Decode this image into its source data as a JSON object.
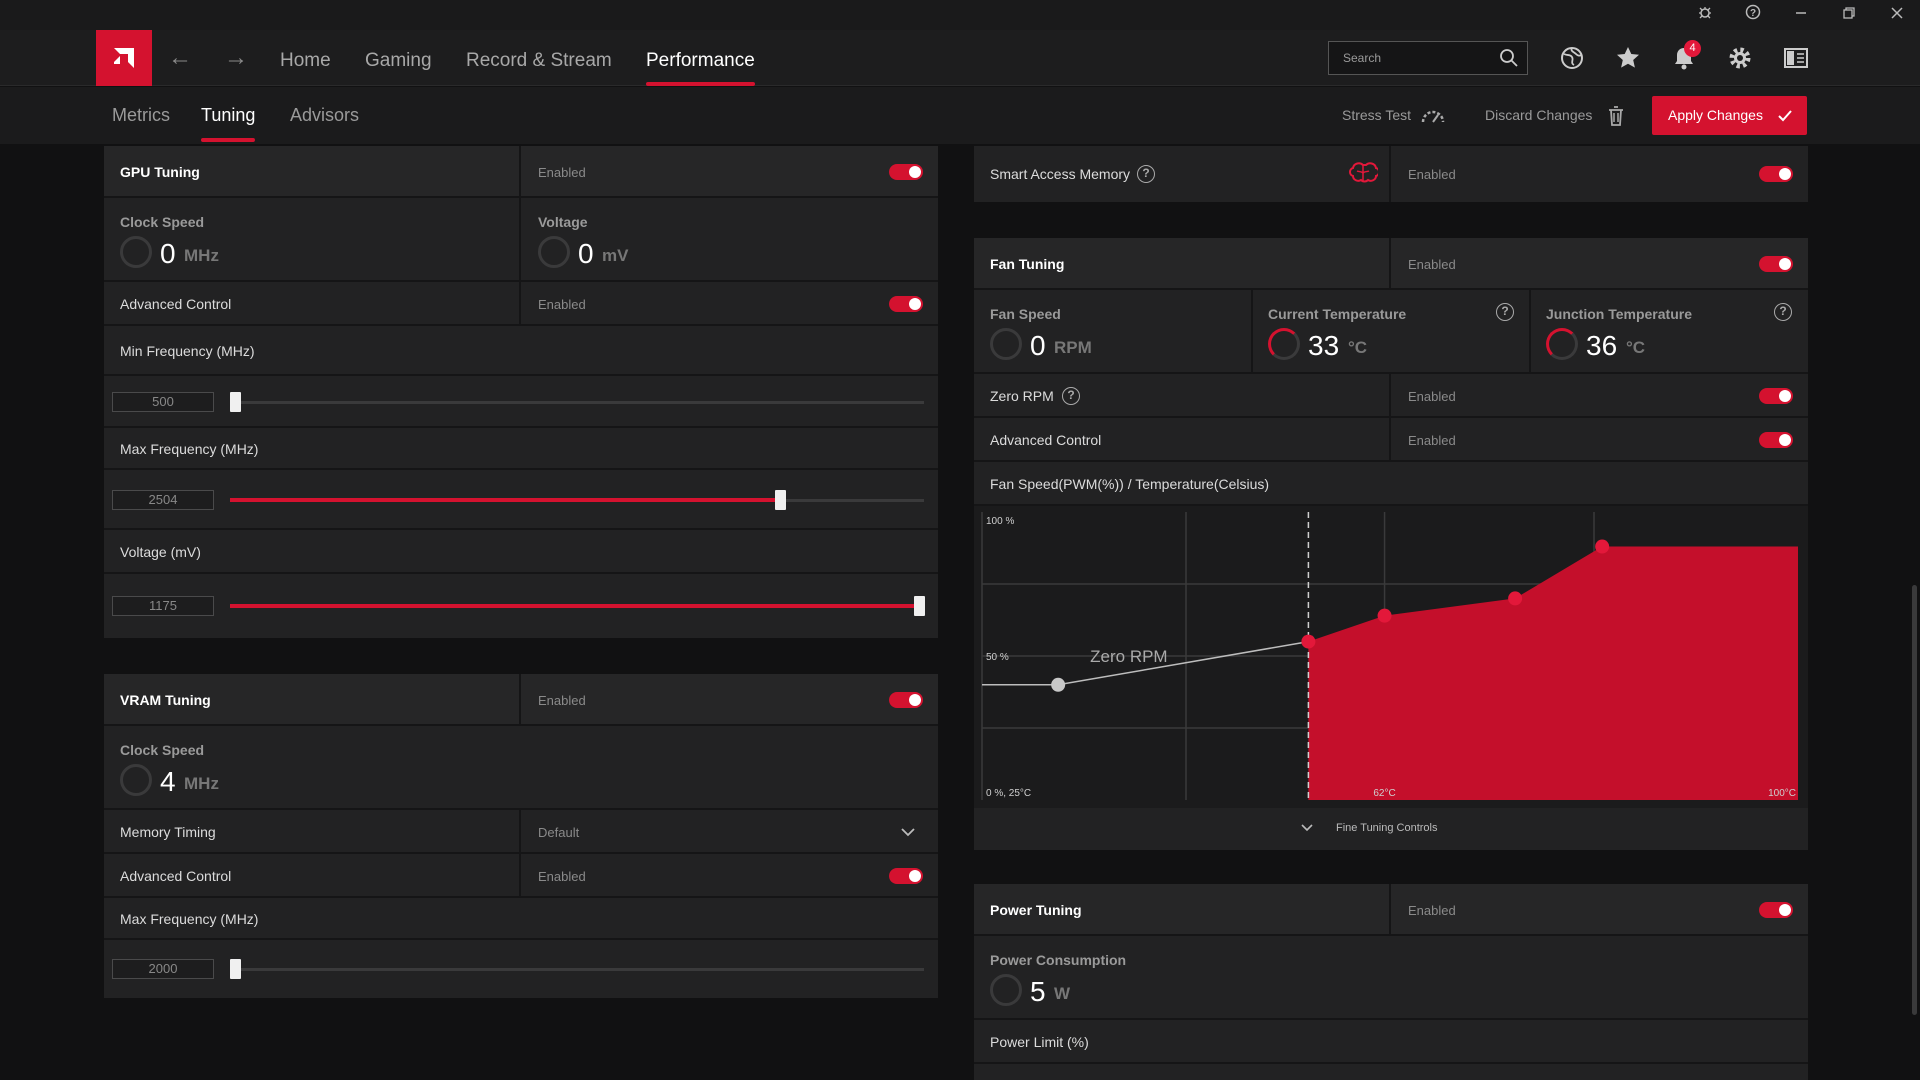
{
  "nav": {
    "home": "Home",
    "gaming": "Gaming",
    "record": "Record & Stream",
    "performance": "Performance",
    "search_placeholder": "Search",
    "notification_count": "4"
  },
  "subnav": {
    "metrics": "Metrics",
    "tuning": "Tuning",
    "advisors": "Advisors",
    "stress_test": "Stress Test",
    "discard": "Discard Changes",
    "apply": "Apply Changes"
  },
  "gpu": {
    "title": "GPU Tuning",
    "status": "Enabled",
    "clock_label": "Clock Speed",
    "clock_value": "0",
    "clock_unit": "MHz",
    "voltage_label": "Voltage",
    "voltage_value": "0",
    "voltage_unit": "mV",
    "adv_label": "Advanced Control",
    "adv_status": "Enabled",
    "min_freq_label": "Min Frequency (MHz)",
    "min_freq_value": "500",
    "max_freq_label": "Max Frequency (MHz)",
    "max_freq_value": "2504",
    "volt_slider_label": "Voltage (mV)",
    "volt_slider_value": "1175"
  },
  "vram": {
    "title": "VRAM Tuning",
    "status": "Enabled",
    "clock_label": "Clock Speed",
    "clock_value": "4",
    "clock_unit": "MHz",
    "timing_label": "Memory Timing",
    "timing_value": "Default",
    "adv_label": "Advanced Control",
    "adv_status": "Enabled",
    "max_freq_label": "Max Frequency (MHz)",
    "max_freq_value": "2000"
  },
  "sam": {
    "label": "Smart Access Memory",
    "status": "Enabled"
  },
  "fan": {
    "title": "Fan Tuning",
    "status": "Enabled",
    "speed_label": "Fan Speed",
    "speed_value": "0",
    "speed_unit": "RPM",
    "cur_temp_label": "Current Temperature",
    "cur_temp_value": "33",
    "junc_temp_label": "Junction Temperature",
    "junc_temp_value": "36",
    "temp_unit": "°C",
    "zero_rpm_label": "Zero RPM",
    "zero_rpm_status": "Enabled",
    "adv_label": "Advanced Control",
    "adv_status": "Enabled",
    "curve_label": "Fan Speed(PWM(%)) / Temperature(Celsius)",
    "fine_tuning": "Fine Tuning Controls"
  },
  "power": {
    "title": "Power Tuning",
    "status": "Enabled",
    "consumption_label": "Power Consumption",
    "consumption_value": "5",
    "consumption_unit": "W",
    "limit_label": "Power Limit (%)"
  },
  "chart_data": {
    "type": "area",
    "title": "Fan Speed(PWM(%)) / Temperature(Celsius)",
    "ytick_labels": [
      "100 %",
      "50 %"
    ],
    "xtick_labels": [
      "0 %, 25°C",
      "62°C",
      "100°C"
    ],
    "annotation": "Zero RPM",
    "xlim": [
      25,
      100
    ],
    "ylim": [
      0,
      100
    ],
    "zero_rpm_threshold": 55,
    "curve": [
      {
        "x": 25,
        "y": 40
      },
      {
        "x": 32,
        "y": 40
      },
      {
        "x": 55,
        "y": 55
      },
      {
        "x": 62,
        "y": 64
      },
      {
        "x": 74,
        "y": 70
      },
      {
        "x": 82,
        "y": 88
      },
      {
        "x": 100,
        "y": 88
      }
    ],
    "points": [
      {
        "x": 32,
        "y": 40,
        "color": "#c8c8c8"
      },
      {
        "x": 55,
        "y": 55,
        "color": "#e3183a"
      },
      {
        "x": 62,
        "y": 64,
        "color": "#e3183a"
      },
      {
        "x": 74,
        "y": 70,
        "color": "#e3183a"
      },
      {
        "x": 82,
        "y": 88,
        "color": "#e3183a"
      }
    ],
    "fill_color": "#c40f2b"
  }
}
